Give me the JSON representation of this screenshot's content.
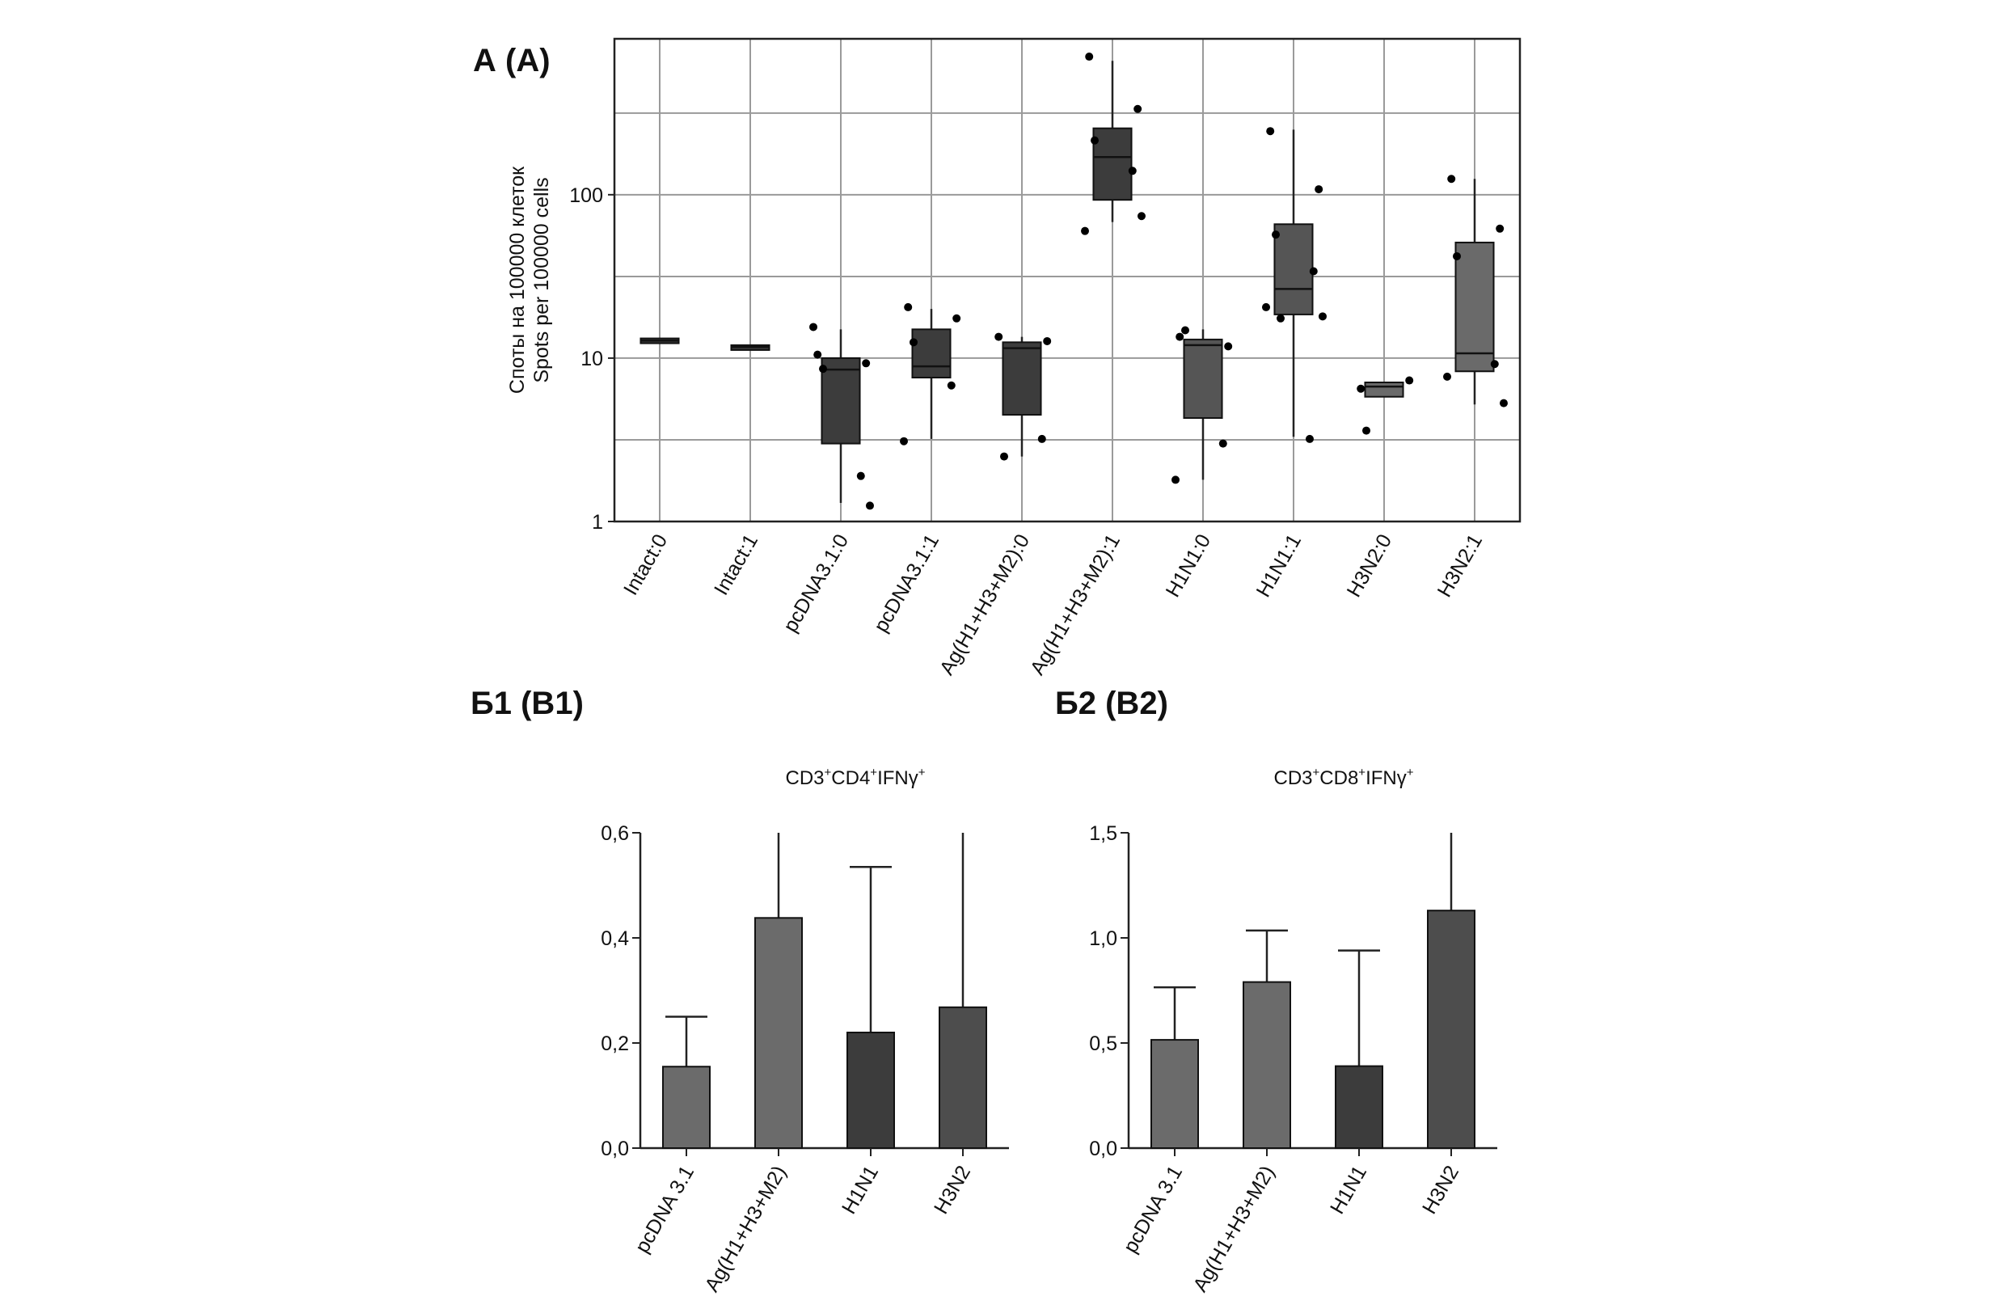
{
  "panel_labels": {
    "a": "А (A)",
    "b1": "Б1 (B1)",
    "b2": "Б2 (B2)"
  },
  "chart_data": [
    {
      "id": "A",
      "type": "box",
      "yscale": "log",
      "ylabel_ru": "Споты на 100000 клеток",
      "ylabel_en": "Spots per 100000 cells",
      "ylim": [
        1,
        900
      ],
      "yticks": [
        1,
        10,
        100
      ],
      "ytick_labels": [
        "1",
        "10",
        "100"
      ],
      "gridlines": [
        3.16,
        10,
        31.6,
        100,
        316,
        900
      ],
      "categories": [
        "Intact:0",
        "Intact:1",
        "pcDNA3.1:0",
        "pcDNA3.1:1",
        "Ag(H1+H3+M2):0",
        "Ag(H1+H3+M2):1",
        "H1N1:0",
        "H1N1:1",
        "H3N2:0",
        "H3N2:1"
      ],
      "colors": [
        "#3c3c3c",
        "#3c3c3c",
        "#3c3c3c",
        "#3c3c3c",
        "#3c3c3c",
        "#3c3c3c",
        "#555555",
        "#555555",
        "#6a6a6a",
        "#6a6a6a"
      ],
      "boxes": [
        {
          "min": 12.4,
          "q1": 12.4,
          "median": 12.8,
          "q3": 13.2,
          "max": 13.2,
          "points": []
        },
        {
          "min": 11.4,
          "q1": 11.4,
          "median": 11.7,
          "q3": 12.0,
          "max": 12.0,
          "points": []
        },
        {
          "min": 1.3,
          "q1": 3.0,
          "median": 8.5,
          "q3": 10.0,
          "max": 15.0,
          "points": [
            10.5,
            9.3,
            8.6,
            1.9,
            15.5,
            1.25
          ]
        },
        {
          "min": 3.2,
          "q1": 7.6,
          "median": 8.9,
          "q3": 15.0,
          "max": 20.0,
          "points": [
            20.5,
            17.5,
            12.5,
            6.8,
            3.1
          ]
        },
        {
          "min": 2.5,
          "q1": 4.5,
          "median": 11.5,
          "q3": 12.5,
          "max": 13.5,
          "points": [
            13.5,
            12.7,
            2.5,
            3.2
          ]
        },
        {
          "min": 68,
          "q1": 93,
          "median": 170,
          "q3": 255,
          "max": 660,
          "points": [
            700,
            335,
            215,
            140,
            60,
            74
          ]
        },
        {
          "min": 1.8,
          "q1": 4.3,
          "median": 12.0,
          "q3": 13.0,
          "max": 15.0,
          "points": [
            13.5,
            11.8,
            14.8,
            3.0,
            1.8
          ]
        },
        {
          "min": 3.3,
          "q1": 18.5,
          "median": 26.5,
          "q3": 66,
          "max": 250,
          "points": [
            245,
            108,
            57,
            34,
            20.5,
            18,
            17.5,
            3.2
          ]
        },
        {
          "min": 5.8,
          "q1": 5.8,
          "median": 6.7,
          "q3": 7.1,
          "max": 7.1,
          "points": [
            6.5,
            7.3,
            3.6
          ]
        },
        {
          "min": 5.2,
          "q1": 8.3,
          "median": 10.7,
          "q3": 51,
          "max": 125,
          "points": [
            125,
            62,
            42,
            9.2,
            7.7,
            5.3
          ]
        }
      ]
    },
    {
      "id": "B1",
      "type": "bar",
      "title_main": "CD3",
      "title_parts": [
        "CD3",
        "+",
        "CD4",
        "+",
        "IFNγ",
        "+"
      ],
      "ylim": [
        0,
        0.6
      ],
      "yticks": [
        0,
        0.2,
        0.4,
        0.6
      ],
      "ytick_labels": [
        "0,0",
        "0,2",
        "0,4",
        "0,6"
      ],
      "categories": [
        "pcDNA 3.1",
        "Ag(H1+H3+M2)",
        "H1N1",
        "H3N2"
      ],
      "values": [
        0.155,
        0.438,
        0.22,
        0.268
      ],
      "errors": [
        0.25,
        0.6,
        0.535,
        0.6
      ],
      "colors": [
        "#6b6b6b",
        "#6b6b6b",
        "#3c3c3c",
        "#4d4d4d"
      ]
    },
    {
      "id": "B2",
      "type": "bar",
      "title_parts": [
        "CD3",
        "+",
        "CD8",
        "+",
        "IFNγ",
        "+"
      ],
      "ylim": [
        0,
        1.5
      ],
      "yticks": [
        0,
        0.5,
        1.0,
        1.5
      ],
      "ytick_labels": [
        "0,0",
        "0,5",
        "1,0",
        "1,5"
      ],
      "categories": [
        "pcDNA 3.1",
        "Ag(H1+H3+M2)",
        "H1N1",
        "H3N2"
      ],
      "values": [
        0.515,
        0.79,
        0.39,
        1.13
      ],
      "errors": [
        0.765,
        1.035,
        0.94,
        1.5
      ],
      "colors": [
        "#6b6b6b",
        "#6b6b6b",
        "#3c3c3c",
        "#4d4d4d"
      ]
    }
  ]
}
